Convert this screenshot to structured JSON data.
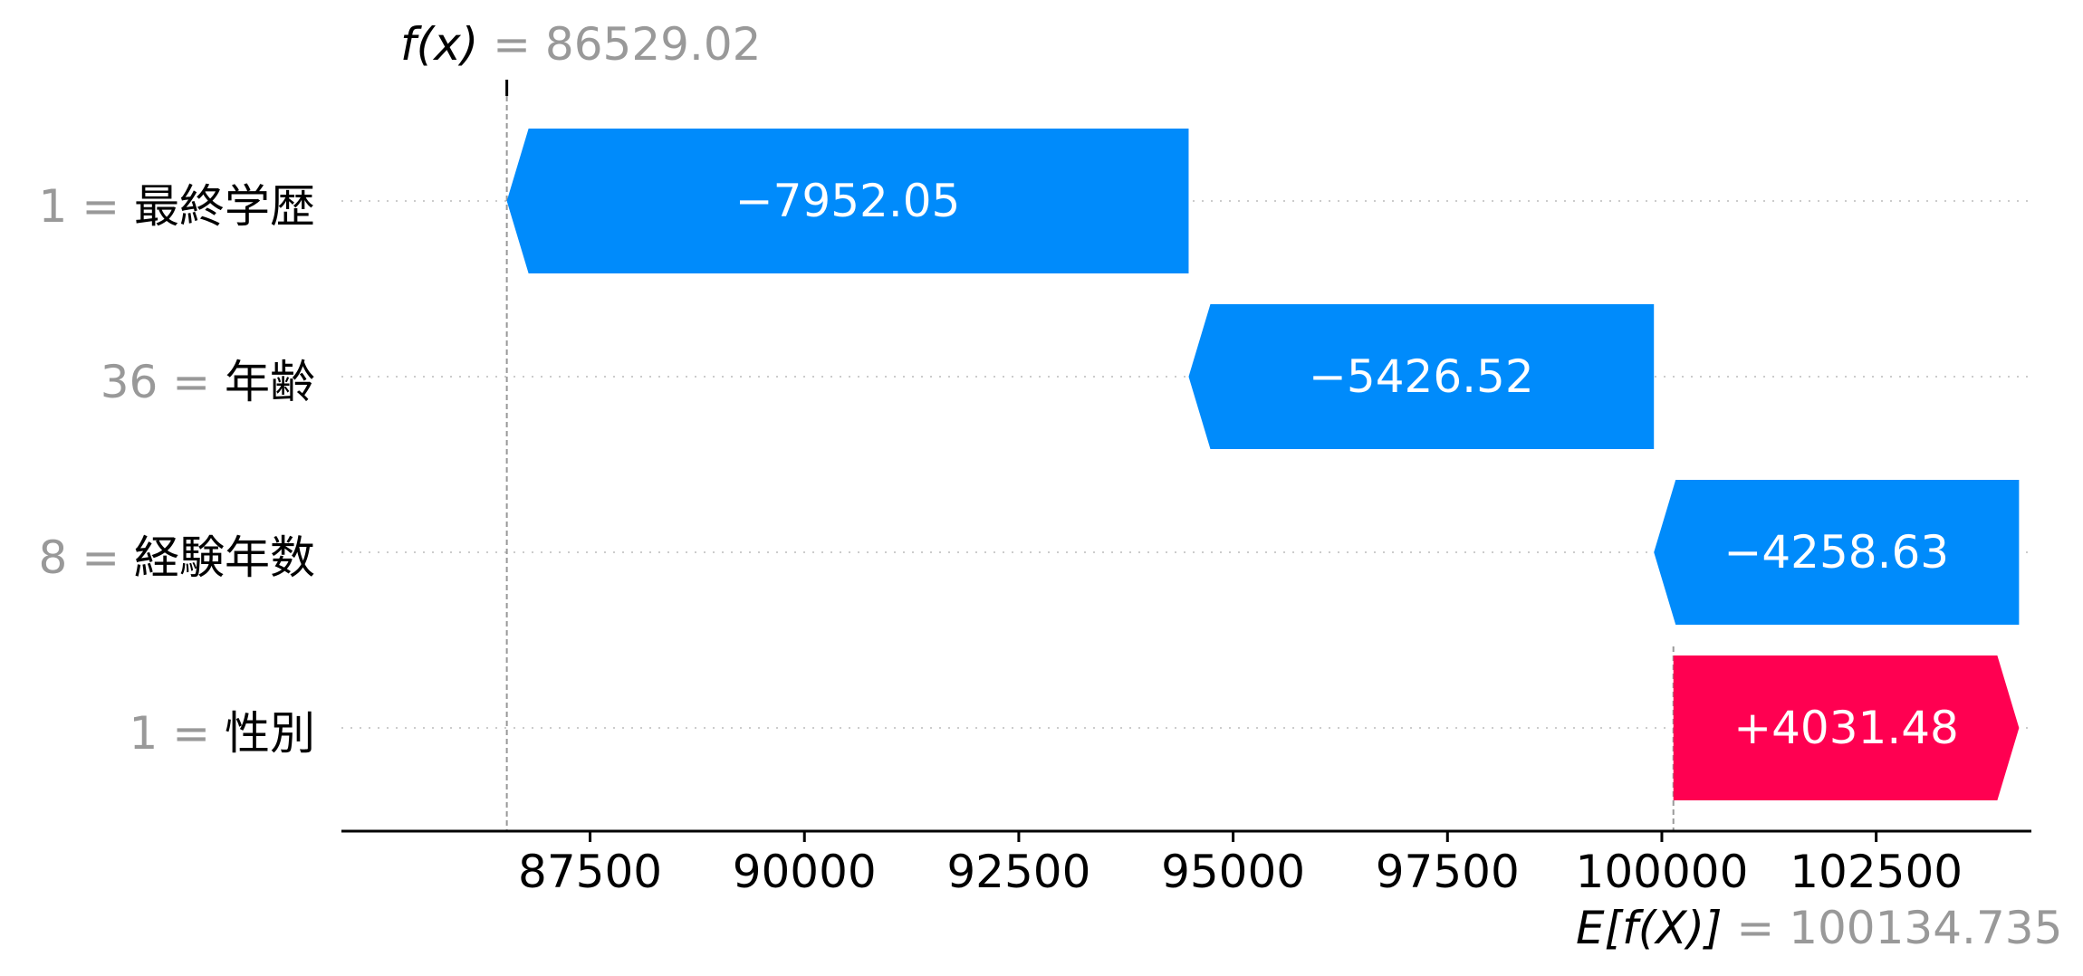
{
  "chart_data": {
    "type": "waterfall",
    "f_x": {
      "symbol": "f(x)",
      "value": "86529.02",
      "numeric": 86529.02
    },
    "expected": {
      "symbol": "E[f(X)]",
      "value": "100134.735",
      "numeric": 100134.735
    },
    "features": [
      {
        "feature_value": "1",
        "name": "最終学歴",
        "contribution": -7952.05,
        "label": "−7952.05"
      },
      {
        "feature_value": "36",
        "name": "年齢",
        "contribution": -5426.52,
        "label": "−5426.52"
      },
      {
        "feature_value": "8",
        "name": "経験年数",
        "contribution": -4258.63,
        "label": "−4258.63"
      },
      {
        "feature_value": "1",
        "name": "性別",
        "contribution": 4031.48,
        "label": "+4031.48"
      }
    ],
    "x_ticks": [
      87500,
      90000,
      92500,
      95000,
      97500,
      100000,
      102500
    ],
    "x_tick_labels": [
      "87500",
      "90000",
      "92500",
      "95000",
      "97500",
      "100000",
      "102500"
    ],
    "xlim": [
      84600,
      104310
    ],
    "colors": {
      "negative": "#008bfb",
      "positive": "#ff0051",
      "muted": "#999999",
      "axis": "#000000",
      "grid": "#cccccc"
    }
  }
}
